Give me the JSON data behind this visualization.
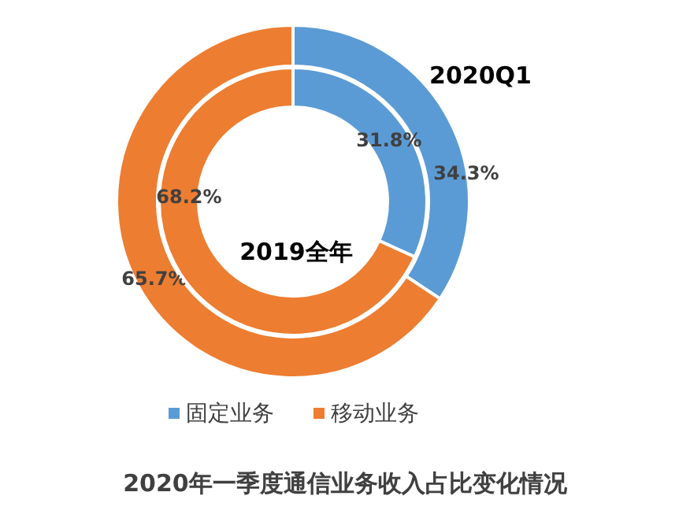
{
  "chart_data": {
    "type": "donut",
    "title": "2020年一季度通信业务收入占比变化情况",
    "categories": [
      "固定业务",
      "移动业务"
    ],
    "colors": [
      "#5b9bd5",
      "#ed7d31"
    ],
    "series": [
      {
        "name": "2020Q1",
        "values": [
          34.3,
          65.7
        ],
        "value_labels": [
          "34.3%",
          "65.7%"
        ]
      },
      {
        "name": "2019全年",
        "values": [
          31.8,
          68.2
        ],
        "value_labels": [
          "31.8%",
          "68.2%"
        ]
      }
    ],
    "legend": "bottom"
  }
}
